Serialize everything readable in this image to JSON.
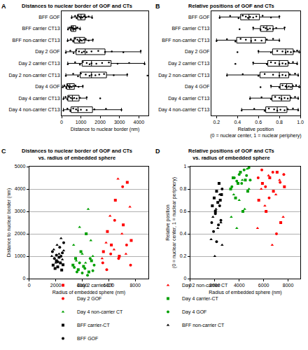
{
  "chart_data": [
    {
      "type": "box",
      "orientation": "horizontal",
      "annotations": [
        "A"
      ],
      "title": "Distances to nuclear border of GOF and CTs",
      "xlabel": "Distance to nuclear border (nm)",
      "categories": [
        "BFF GOF",
        "BFF carrier CT13",
        "BFF non-carrier CT13",
        "Day 2 GOF",
        "Day 2 carrier CT13",
        "Day 2 non-carrier CT13",
        "Day 4 GOF",
        "Day 4 carrier CT13",
        "Day 4 non-carrier CT13"
      ],
      "values": [
        [
          520,
          700,
          780,
          850,
          920,
          980,
          1010,
          1080,
          1150,
          1200,
          1260,
          1400,
          1580
        ],
        [
          330,
          420,
          480,
          520,
          560,
          600,
          640,
          690,
          750,
          820,
          960
        ],
        [
          310,
          480,
          600,
          700,
          820,
          900,
          980,
          1050,
          1150,
          1250,
          1400,
          1620
        ],
        [
          220,
          450,
          620,
          750,
          900,
          1050,
          1150,
          1300,
          1550,
          1900,
          2250,
          2600,
          3200,
          4100
        ],
        [
          320,
          700,
          950,
          1100,
          1300,
          1450,
          1550,
          1800,
          2100,
          2450,
          2900,
          3500,
          4300
        ],
        [
          220,
          600,
          850,
          1000,
          1250,
          1450,
          1550,
          1750,
          1950,
          2200,
          2700,
          3400,
          4450
        ],
        [
          60,
          150,
          240,
          300,
          350,
          400,
          450,
          520,
          600,
          720,
          880,
          1100
        ],
        [
          90,
          200,
          300,
          380,
          480,
          560,
          650,
          780,
          950,
          1300,
          2000
        ],
        [
          90,
          300,
          450,
          600,
          750,
          850,
          1000,
          1300,
          1700,
          2300,
          3100
        ]
      ],
      "color": "#000000",
      "grid": false,
      "xlim": [
        0,
        4500
      ],
      "xticks": [
        0,
        1000,
        2000,
        3000,
        4000
      ]
    },
    {
      "type": "box",
      "orientation": "horizontal",
      "annotations": [
        "B"
      ],
      "title": "Relative positions of GOF and CTs",
      "xlabel": "Relative position\n(0 = nuclear center, 1 = nuclear periphery)",
      "categories": [
        "BFF GOF",
        "BFF carrier CT13",
        "BFF non-carrier CT13",
        "Day 2 GOF",
        "Day 2 carrier CT13",
        "Day 2 non-carrier CT13",
        "Day 4 GOF",
        "Day 4 carrier CT13",
        "Day 4 non-carrier CT13"
      ],
      "values": [
        [
          0.23,
          0.33,
          0.41,
          0.45,
          0.48,
          0.5,
          0.52,
          0.55,
          0.58,
          0.64,
          0.72,
          0.8
        ],
        [
          0.42,
          0.55,
          0.62,
          0.65,
          0.67,
          0.69,
          0.71,
          0.74,
          0.77,
          0.85
        ],
        [
          0.2,
          0.3,
          0.38,
          0.43,
          0.48,
          0.53,
          0.57,
          0.63,
          0.68,
          0.74,
          0.8
        ],
        [
          0.4,
          0.6,
          0.72,
          0.78,
          0.83,
          0.86,
          0.88,
          0.91,
          0.94,
          0.97,
          0.99
        ],
        [
          0.38,
          0.55,
          0.68,
          0.72,
          0.76,
          0.8,
          0.83,
          0.86,
          0.89,
          0.93,
          0.97
        ],
        [
          0.3,
          0.45,
          0.6,
          0.66,
          0.74,
          0.8,
          0.83,
          0.86,
          0.9,
          0.95,
          0.98
        ],
        [
          0.62,
          0.72,
          0.8,
          0.83,
          0.86,
          0.87,
          0.89,
          0.91,
          0.93,
          0.96,
          0.99
        ],
        [
          0.52,
          0.63,
          0.72,
          0.76,
          0.8,
          0.82,
          0.85,
          0.88,
          0.91,
          0.95,
          0.98
        ],
        [
          0.44,
          0.56,
          0.66,
          0.7,
          0.75,
          0.78,
          0.81,
          0.85,
          0.88,
          0.93,
          0.98
        ]
      ],
      "color": "#000000",
      "grid": false,
      "xlim": [
        0.15,
        1
      ],
      "xticks": [
        0.2,
        0.4,
        0.6,
        0.8,
        {
          "value": 1,
          "label": "1.0"
        }
      ]
    },
    {
      "type": "scatter",
      "annotations": [
        "C"
      ],
      "title": "Distances to nuclear border of GOF and CTs\nvs. radius of embedded sphere",
      "xlabel": "Radius of embedded sphere (nm)",
      "ylabel": "Distance to nuclear border (nm)",
      "legend": "bottom",
      "grid": "y",
      "xlim": [
        0,
        9000
      ],
      "xticks": [
        0,
        2000,
        4000,
        6000,
        8000
      ],
      "ylim": [
        0,
        5000
      ],
      "yticks": [
        0,
        1000,
        2000,
        3000,
        4000,
        5000
      ],
      "series": [
        {
          "name": "Day 2 carrier-CT",
          "color": "#ff0000",
          "marker": "square",
          "x": [
            5600,
            5900,
            6200,
            6500,
            6800,
            7100,
            7400,
            7700
          ],
          "values": [
            1200,
            2100,
            1500,
            3500,
            1000,
            2400,
            4300,
            1700
          ]
        },
        {
          "name": "Day 2 non-carrier CT",
          "color": "#ff0000",
          "marker": "triangle",
          "x": [
            5500,
            5800,
            6100,
            6400,
            6700,
            7000,
            7300,
            7600
          ],
          "values": [
            900,
            1600,
            2800,
            1300,
            4450,
            2000,
            1100,
            3200
          ]
        },
        {
          "name": "Day 2 GOF",
          "color": "#ff0000",
          "marker": "circle",
          "x": [
            5550,
            5850,
            6150,
            6450,
            6750,
            7050,
            7350,
            7650
          ],
          "values": [
            700,
            400,
            1100,
            2600,
            900,
            4100,
            1500,
            600
          ]
        },
        {
          "name": "Day 4 carrier-CT",
          "color": "#00a000",
          "marker": "square",
          "x": [
            3300,
            3500,
            3700,
            3900,
            4100,
            4300,
            4500,
            4700
          ],
          "values": [
            600,
            900,
            400,
            1200,
            550,
            2000,
            300,
            800
          ]
        },
        {
          "name": "Day 4 non-carrier CT",
          "color": "#00a000",
          "marker": "triangle",
          "x": [
            3350,
            3550,
            3800,
            4000,
            4250,
            4450,
            4650,
            4800
          ],
          "values": [
            1500,
            800,
            2300,
            1100,
            700,
            3100,
            1700,
            1000
          ]
        },
        {
          "name": "Day 4 GOF",
          "color": "#00a000",
          "marker": "circle",
          "x": [
            3400,
            3600,
            3800,
            4000,
            4200,
            4400,
            4600,
            4800,
            4900
          ],
          "values": [
            500,
            300,
            700,
            250,
            450,
            150,
            900,
            350,
            600
          ]
        },
        {
          "name": "BFF carrier-CT",
          "color": "#000000",
          "marker": "square",
          "x": [
            1800,
            1950,
            2050,
            2150,
            2250,
            2350,
            2450,
            2550
          ],
          "values": [
            600,
            450,
            800,
            520,
            950,
            700,
            380,
            620
          ]
        },
        {
          "name": "BFF non-carrier CT",
          "color": "#000000",
          "marker": "triangle",
          "x": [
            1700,
            1850,
            2000,
            2100,
            2250,
            2400,
            2500,
            2600
          ],
          "values": [
            1000,
            1300,
            700,
            1500,
            1100,
            1800,
            850,
            1250
          ]
        },
        {
          "name": "BFF GOF",
          "color": "#000000",
          "marker": "circle",
          "x": [
            1750,
            1900,
            2050,
            2150,
            2300,
            2400,
            2500,
            2600
          ],
          "values": [
            1200,
            900,
            1050,
            750,
            1400,
            1000,
            1150,
            1600
          ]
        }
      ]
    },
    {
      "type": "scatter",
      "annotations": [
        "D"
      ],
      "title": "Relative positions of GOF and CTs\nvs. radius of embedded sphere",
      "xlabel": "Radius of embedded sphere (nm)",
      "ylabel": "Relative position\n(0 = nuclear center, 1 = nuclear periphery)",
      "grid": "y",
      "xlim": [
        0,
        9000
      ],
      "xticks": [
        0,
        2000,
        4000,
        6000,
        8000
      ],
      "ylim": [
        0,
        1
      ],
      "yticks": [
        0,
        0.2,
        0.4,
        0.6,
        0.8,
        1
      ],
      "series": [
        {
          "color": "#ff0000",
          "marker": "square",
          "x": [
            5600,
            5900,
            6200,
            6500,
            6800,
            7100,
            7400,
            7700
          ],
          "values": [
            0.7,
            0.85,
            0.6,
            0.9,
            0.78,
            0.95,
            0.5,
            0.82
          ]
        },
        {
          "color": "#ff0000",
          "marker": "triangle",
          "x": [
            5500,
            5800,
            6100,
            6400,
            6700,
            7000,
            7300,
            7600
          ],
          "values": [
            0.45,
            0.8,
            0.65,
            0.92,
            0.3,
            0.75,
            0.88,
            0.55
          ]
        },
        {
          "color": "#ff0000",
          "marker": "circle",
          "x": [
            5550,
            5850,
            6150,
            6450,
            6750,
            7050,
            7350,
            7650
          ],
          "values": [
            0.9,
            0.97,
            0.82,
            0.72,
            0.95,
            0.4,
            0.86,
            0.93
          ]
        },
        {
          "color": "#00a000",
          "marker": "square",
          "x": [
            3300,
            3500,
            3700,
            3900,
            4100,
            4300,
            4500,
            4700
          ],
          "values": [
            0.8,
            0.9,
            0.72,
            0.85,
            0.95,
            0.6,
            0.88,
            0.78
          ]
        },
        {
          "color": "#00a000",
          "marker": "triangle",
          "x": [
            3350,
            3550,
            3800,
            4000,
            4250,
            4450,
            4650,
            4800
          ],
          "values": [
            0.55,
            0.75,
            0.45,
            0.7,
            0.88,
            0.62,
            0.98,
            0.8
          ]
        },
        {
          "color": "#00a000",
          "marker": "circle",
          "x": [
            3400,
            3600,
            3800,
            4000,
            4200,
            4400,
            4600,
            4800,
            4900
          ],
          "values": [
            0.82,
            0.9,
            0.87,
            0.93,
            0.85,
            0.97,
            0.92,
            0.99,
            0.88
          ]
        },
        {
          "color": "#000000",
          "marker": "square",
          "x": [
            1800,
            1950,
            2050,
            2150,
            2250,
            2350,
            2450,
            2550
          ],
          "values": [
            0.65,
            0.72,
            0.6,
            0.78,
            0.68,
            0.85,
            0.7,
            0.75
          ]
        },
        {
          "color": "#000000",
          "marker": "triangle",
          "x": [
            1700,
            1850,
            2000,
            2100,
            2250,
            2400,
            2500,
            2600
          ],
          "values": [
            0.35,
            0.55,
            0.2,
            0.62,
            0.45,
            0.75,
            0.5,
            0.3
          ]
        },
        {
          "color": "#000000",
          "marker": "circle",
          "x": [
            1750,
            1900,
            2050,
            2150,
            2300,
            2400,
            2500,
            2600
          ],
          "values": [
            0.5,
            0.42,
            0.58,
            0.33,
            0.48,
            0.65,
            0.52,
            0.8
          ]
        }
      ]
    }
  ]
}
